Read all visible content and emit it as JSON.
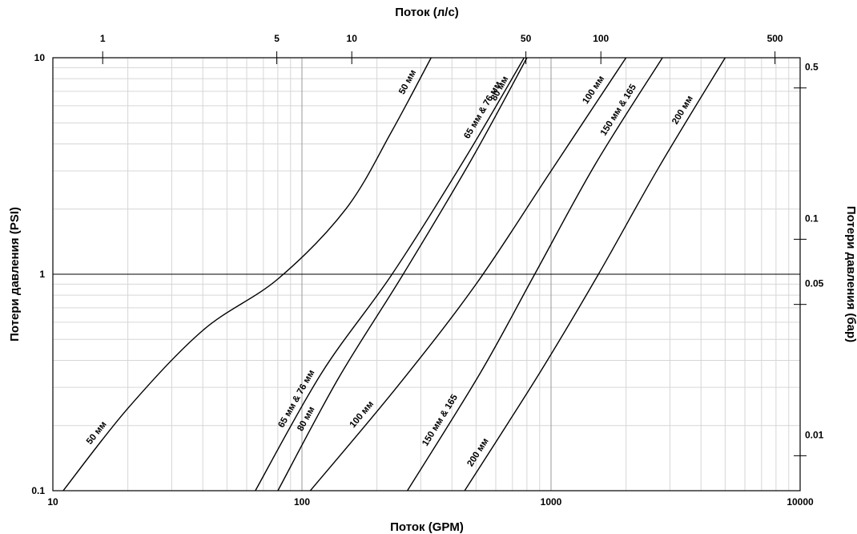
{
  "chart_data": {
    "type": "line",
    "x_scale": "log",
    "y_scale": "log",
    "xlabel": "Поток (GPM)",
    "ylabel": "Потери давления (PSI)",
    "x2label": "Поток (л/с)",
    "y2label": "Потери давления (бар)",
    "xlim": [
      10,
      10000
    ],
    "ylim": [
      0.1,
      10
    ],
    "x_ticks": [
      "10",
      "100",
      "1000",
      "10000"
    ],
    "y_ticks": [
      "0.1",
      "1",
      "10"
    ],
    "x2_ticks": [
      {
        "label": "1",
        "value": 1
      },
      {
        "label": "5",
        "value": 5
      },
      {
        "label": "10",
        "value": 10
      },
      {
        "label": "50",
        "value": 50
      },
      {
        "label": "100",
        "value": 100
      },
      {
        "label": "500",
        "value": 500
      }
    ],
    "y2_ticks": [
      {
        "label": "0.5",
        "value": 0.5
      },
      {
        "label": "0.1",
        "value": 0.1
      },
      {
        "label": "0.05",
        "value": 0.05
      },
      {
        "label": "0.01",
        "value": 0.01
      }
    ],
    "grid": true,
    "series": [
      {
        "name": "50 мм",
        "points": [
          [
            11,
            0.1
          ],
          [
            20,
            0.24
          ],
          [
            40,
            0.55
          ],
          [
            80,
            0.95
          ],
          [
            150,
            2.0
          ],
          [
            230,
            4.6
          ],
          [
            330,
            10
          ]
        ]
      },
      {
        "name": "65 мм & 76 мм",
        "points": [
          [
            65,
            0.1
          ],
          [
            120,
            0.35
          ],
          [
            230,
            1.0
          ],
          [
            450,
            3.4
          ],
          [
            780,
            10
          ]
        ]
      },
      {
        "name": "80 мм",
        "points": [
          [
            80,
            0.1
          ],
          [
            140,
            0.33
          ],
          [
            255,
            1.0
          ],
          [
            480,
            3.4
          ],
          [
            800,
            10
          ]
        ]
      },
      {
        "name": "100 мм",
        "points": [
          [
            108,
            0.1
          ],
          [
            240,
            0.3
          ],
          [
            500,
            0.9
          ],
          [
            1000,
            3.0
          ],
          [
            2000,
            10
          ]
        ]
      },
      {
        "name": "150 мм & 165",
        "points": [
          [
            265,
            0.1
          ],
          [
            520,
            0.35
          ],
          [
            860,
            1.0
          ],
          [
            1500,
            3.2
          ],
          [
            2800,
            10
          ]
        ]
      },
      {
        "name": "200 мм",
        "points": [
          [
            450,
            0.1
          ],
          [
            900,
            0.35
          ],
          [
            1550,
            1.0
          ],
          [
            2700,
            3.1
          ],
          [
            5000,
            10
          ]
        ]
      }
    ]
  }
}
